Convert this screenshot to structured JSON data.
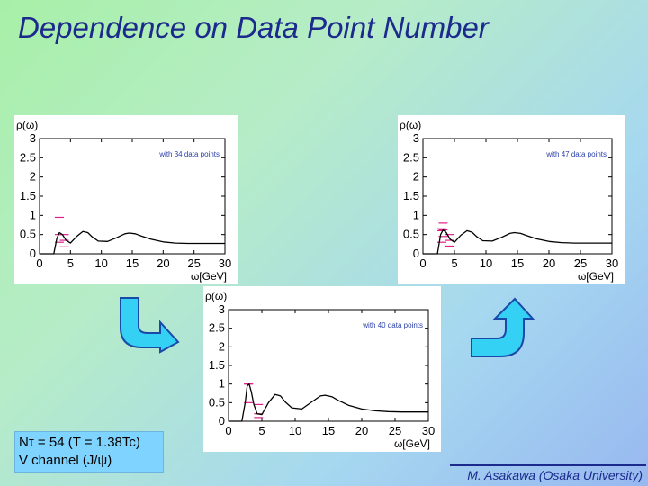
{
  "slide": {
    "title": "Dependence on Data Point Number",
    "note_line1": "Nτ = 54 (T = 1.38Tc)",
    "note_line2": "V channel (J/ψ)",
    "author": "M. Asakawa (Osaka University)"
  },
  "chart_data": [
    {
      "type": "line",
      "title": "",
      "annotation": "with 34 data points",
      "ylabel": "ρ(ω)",
      "xlabel": "ω[GeV]",
      "xlim": [
        0,
        30
      ],
      "ylim": [
        0,
        3
      ],
      "xticks": [
        "0",
        "5",
        "10",
        "15",
        "20",
        "25",
        "30"
      ],
      "yticks": [
        "0",
        "0.5",
        "1",
        "1.5",
        "2",
        "2.5",
        "3"
      ],
      "series": [
        {
          "x": [
            0,
            2.3,
            2.8,
            3.2,
            3.7,
            4.3,
            5.0,
            6.0,
            7.0,
            7.8,
            8.5,
            9.5,
            11,
            12.5,
            13.8,
            14.5,
            15.5,
            16.5,
            18,
            20,
            22,
            24,
            26,
            28,
            30
          ],
          "y": [
            0,
            0,
            0.4,
            0.55,
            0.5,
            0.35,
            0.28,
            0.45,
            0.58,
            0.55,
            0.44,
            0.33,
            0.32,
            0.42,
            0.52,
            0.54,
            0.52,
            0.46,
            0.38,
            0.31,
            0.28,
            0.27,
            0.27,
            0.27,
            0.27
          ]
        }
      ],
      "error_bars": [
        {
          "x": 3.2,
          "y": 0.5,
          "lo": 0.3,
          "hi": 0.95
        },
        {
          "x": 4.0,
          "y": 0.35,
          "lo": 0.18,
          "hi": 0.5
        }
      ]
    },
    {
      "type": "line",
      "title": "",
      "annotation": "with 47 data points",
      "ylabel": "ρ(ω)",
      "xlabel": "ω[GeV]",
      "xlim": [
        0,
        30
      ],
      "ylim": [
        0,
        3
      ],
      "xticks": [
        "0",
        "5",
        "10",
        "15",
        "20",
        "25",
        "30"
      ],
      "yticks": [
        "0",
        "0.5",
        "1",
        "1.5",
        "2",
        "2.5",
        "3"
      ],
      "series": [
        {
          "x": [
            0,
            2.3,
            2.8,
            3.2,
            3.7,
            4.3,
            5.0,
            6.0,
            7.0,
            7.8,
            8.5,
            9.5,
            11,
            12.5,
            13.8,
            14.5,
            15.5,
            16.5,
            18,
            20,
            22,
            24,
            26,
            28,
            30
          ],
          "y": [
            0,
            0,
            0.5,
            0.62,
            0.55,
            0.38,
            0.3,
            0.48,
            0.6,
            0.56,
            0.45,
            0.34,
            0.33,
            0.43,
            0.53,
            0.55,
            0.53,
            0.47,
            0.39,
            0.32,
            0.29,
            0.28,
            0.28,
            0.28,
            0.28
          ]
        }
      ],
      "error_bars": [
        {
          "x": 3.0,
          "y": 0.6,
          "lo": 0.3,
          "hi": 0.65
        },
        {
          "x": 3.2,
          "y": 0.62,
          "lo": 0.45,
          "hi": 0.8
        },
        {
          "x": 4.2,
          "y": 0.35,
          "lo": 0.2,
          "hi": 0.5
        }
      ]
    },
    {
      "type": "line",
      "title": "",
      "annotation": "with 40 data points",
      "ylabel": "ρ(ω)",
      "xlabel": "ω[GeV]",
      "xlim": [
        0,
        30
      ],
      "ylim": [
        0,
        3
      ],
      "xticks": [
        "0",
        "5",
        "10",
        "15",
        "20",
        "25",
        "30"
      ],
      "yticks": [
        "0",
        "0.5",
        "1",
        "1.5",
        "2",
        "2.5",
        "3"
      ],
      "series": [
        {
          "x": [
            0,
            2.0,
            2.5,
            2.8,
            3.1,
            3.4,
            3.8,
            4.3,
            5.0,
            6.0,
            7.0,
            7.8,
            8.5,
            9.5,
            11,
            12.5,
            13.8,
            14.5,
            15.5,
            16.5,
            18,
            20,
            22,
            24,
            26,
            28,
            30
          ],
          "y": [
            0,
            0,
            0.5,
            0.95,
            1.0,
            0.8,
            0.45,
            0.2,
            0.18,
            0.5,
            0.72,
            0.68,
            0.52,
            0.36,
            0.33,
            0.52,
            0.68,
            0.7,
            0.66,
            0.56,
            0.43,
            0.33,
            0.28,
            0.26,
            0.25,
            0.25,
            0.25
          ]
        }
      ],
      "error_bars": [
        {
          "x": 3.0,
          "y": 1.0,
          "lo": 0.5,
          "hi": 1.0
        },
        {
          "x": 4.5,
          "y": 0.2,
          "lo": 0.1,
          "hi": 0.45
        }
      ]
    }
  ]
}
